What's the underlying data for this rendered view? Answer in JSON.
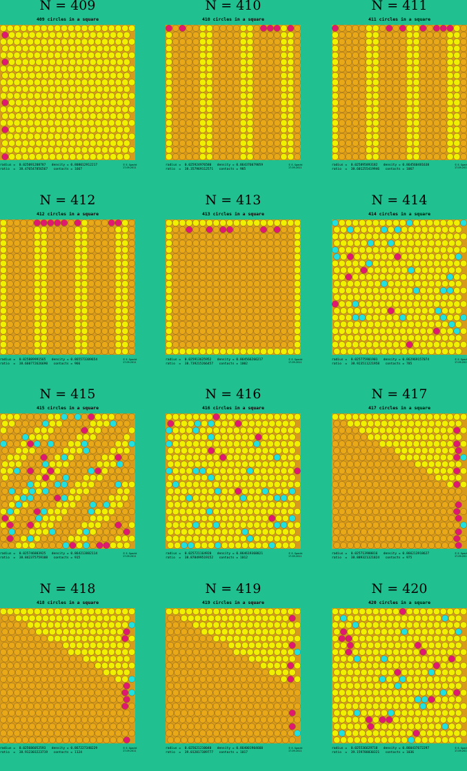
{
  "packings": [
    {
      "title": "N = 409",
      "subtitle": "409 circles in a square",
      "radius_label": "radius",
      "radius": "0.025091208787",
      "density_label": "density",
      "density": "0.808012912217",
      "ratio_label": "ratio",
      "ratio": "38.476547856567",
      "contacts_label": "contacts",
      "contacts": "1667",
      "copyright": "© E. Specht\n17.09.2011",
      "style": "A"
    },
    {
      "title": "N = 410",
      "subtitle": "410 circles in a square",
      "radius_label": "radius",
      "radius": "0.025924976580",
      "density_label": "density",
      "density": "0.864376079059",
      "ratio_label": "ratio",
      "ratio": "38.357969112571",
      "contacts_label": "contacts",
      "contacts": "985",
      "copyright": "© E. Specht\n17.09.2011",
      "style": "B"
    },
    {
      "title": "N = 411",
      "subtitle": "411 circles in a square",
      "radius_label": "radius",
      "radius": "0.025895893182",
      "density_label": "density",
      "density": "0.864560481638",
      "ratio_label": "ratio",
      "ratio": "38.601255419946",
      "contacts_label": "contacts",
      "contacts": "1067",
      "copyright": "© E. Specht\n17.09.2011",
      "style": "B"
    },
    {
      "title": "N = 412",
      "subtitle": "412 circles in a square",
      "radius_label": "radius",
      "radius": "0.025889991565",
      "density_label": "density",
      "density": "0.865573309654",
      "ratio_label": "ratio",
      "ratio": "38.660772626690",
      "contacts_label": "contacts",
      "contacts": "966",
      "copyright": "© E. Specht\n17.09.2011",
      "style": "B"
    },
    {
      "title": "N = 413",
      "subtitle": "413 circles in a square",
      "radius_label": "radius",
      "radius": "0.025913625952",
      "density_label": "density",
      "density": "0.864566266217",
      "ratio_label": "ratio",
      "ratio": "38.739215266457",
      "contacts_label": "contacts",
      "contacts": "1002",
      "copyright": "© E. Specht\n17.09.2011",
      "style": "C"
    },
    {
      "title": "N = 414",
      "subtitle": "414 circles in a square",
      "radius_label": "radius",
      "radius": "0.025775901901",
      "density_label": "density",
      "density": "0.862969157074",
      "ratio_label": "ratio",
      "ratio": "38.923511221958",
      "contacts_label": "contacts",
      "contacts": "785",
      "copyright": "© E. Specht\n17.09.2011",
      "style": "D"
    },
    {
      "title": "N = 415",
      "subtitle": "415 circles in a square",
      "radius_label": "radius",
      "radius": "0.025746803925",
      "density_label": "density",
      "density": "0.864213882114",
      "ratio_label": "ratio",
      "ratio": "38.842375759108",
      "contacts_label": "contacts",
      "contacts": "915",
      "copyright": "© E. Specht\n17.09.2011",
      "style": "E"
    },
    {
      "title": "N = 416",
      "subtitle": "416 circles in a square",
      "radius_label": "radius",
      "radius": "0.025721164920",
      "density_label": "density",
      "density": "0.864619368821",
      "ratio_label": "ratio",
      "ratio": "38.878499519152",
      "contacts_label": "contacts",
      "contacts": "1012",
      "copyright": "© E. Specht\n17.09.2011",
      "style": "D"
    },
    {
      "title": "N = 417",
      "subtitle": "417 circles in a square",
      "radius_label": "radius",
      "radius": "0.025713988816",
      "density_label": "density",
      "density": "0.866213918627",
      "ratio_label": "ratio",
      "ratio": "38.889321321824",
      "contacts_label": "contacts",
      "contacts": "975",
      "copyright": "© E. Specht\n17.09.2011",
      "style": "F"
    },
    {
      "title": "N = 418",
      "subtitle": "418 circles in a square",
      "radius_label": "radius",
      "radius": "0.025686052593",
      "density_label": "density",
      "density": "0.867227348229",
      "ratio_label": "ratio",
      "ratio": "38.912303223719",
      "contacts_label": "contacts",
      "contacts": "1124",
      "copyright": "© E. Specht\n17.09.2011",
      "style": "F"
    },
    {
      "title": "N = 419",
      "subtitle": "419 circles in a square",
      "radius_label": "radius",
      "radius": "0.025621210040",
      "density_label": "density",
      "density": "0.864001904660",
      "ratio_label": "ratio",
      "ratio": "39.012017389777",
      "contacts_label": "contacts",
      "contacts": "1017",
      "copyright": "© E. Specht\n17.09.2011",
      "style": "F"
    },
    {
      "title": "N = 420",
      "subtitle": "420 circles in a square",
      "radius_label": "radius",
      "radius": "0.025536629718",
      "density_label": "density",
      "density": "0.860437672297",
      "ratio_label": "ratio",
      "ratio": "39.159788830321",
      "contacts_label": "contacts",
      "contacts": "1036",
      "copyright": "© E. Specht\n17.09.2011",
      "style": "D"
    }
  ],
  "colors": {
    "background": "#20c090",
    "square": "#d89a1a",
    "grid_circle": "#e8a818",
    "loose_circle": "#f0f000",
    "cyan_circle": "#20e0e0",
    "magenta_circle": "#e01870",
    "stroke": "#705020"
  }
}
